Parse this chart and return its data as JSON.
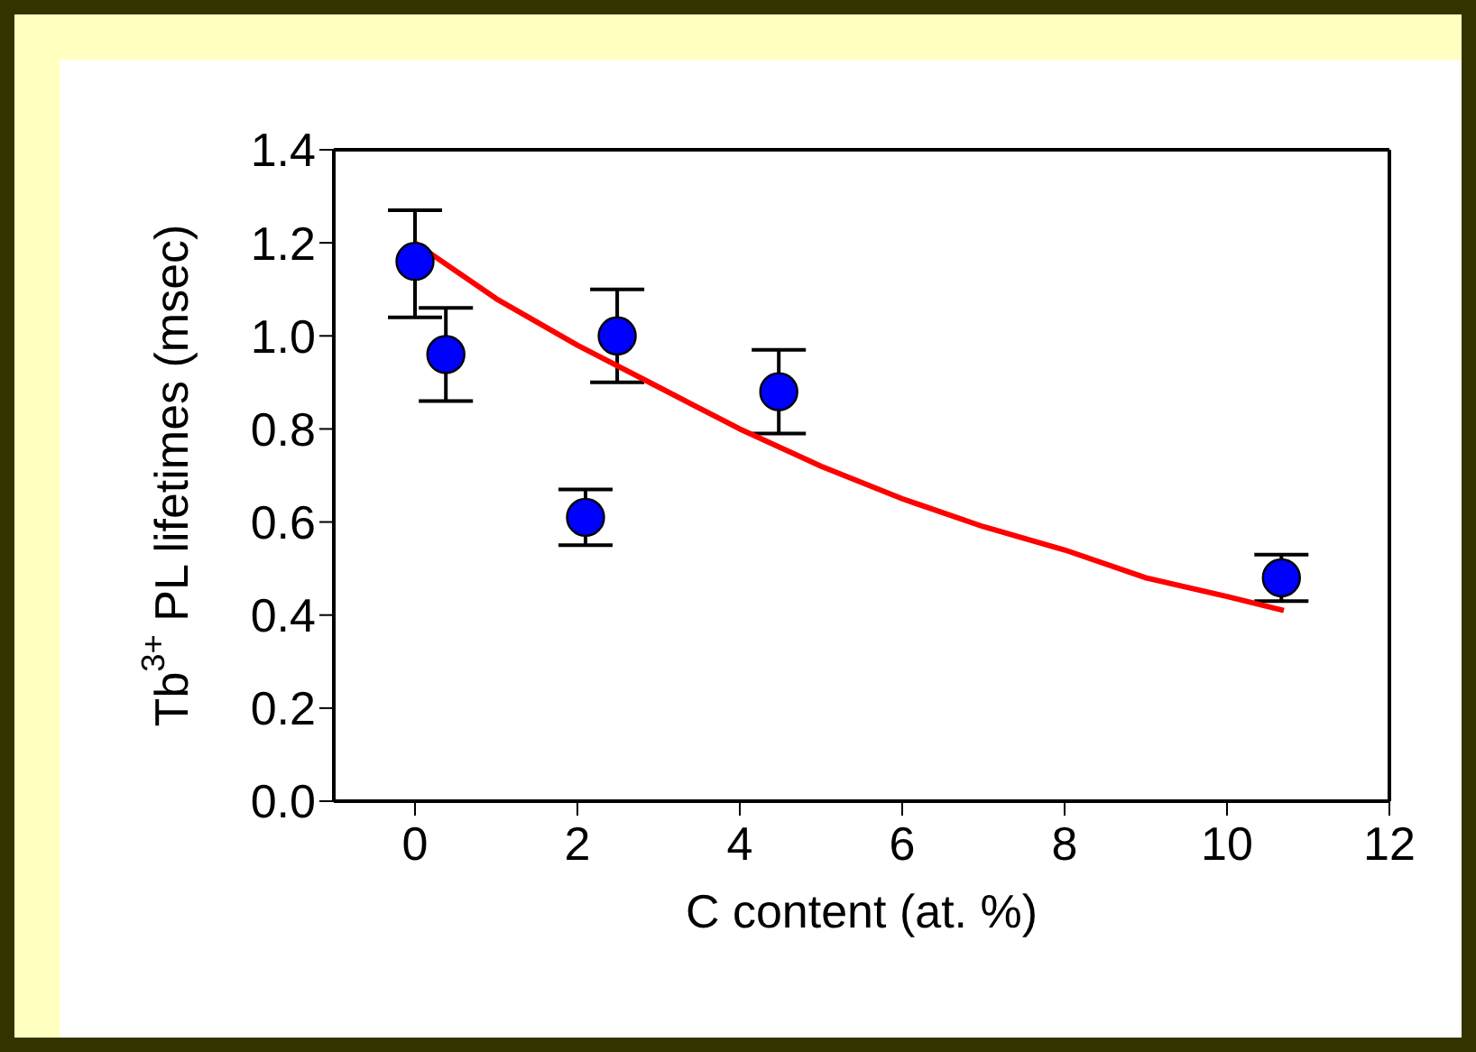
{
  "chart_data": {
    "type": "scatter",
    "xlabel": "C content (at. %)",
    "ylabel": "Tb$^{3+}$ PL lifetimes (msec)",
    "xlim": [
      -1,
      12
    ],
    "xticks": [
      0,
      2,
      4,
      6,
      8,
      10,
      12
    ],
    "ylim": [
      0,
      1.4
    ],
    "yticks": [
      {
        "value": 0,
        "label": "0.0"
      },
      0.2,
      0.4,
      0.6,
      0.8,
      {
        "value": 1,
        "label": "1.0"
      },
      1.2,
      1.4
    ],
    "legend": false,
    "series": [
      {
        "color": "#0000ff",
        "marker": "circle",
        "x": [
          0,
          0.38,
          2.1,
          2.49,
          4.48,
          10.67
        ],
        "values": [
          1.16,
          0.96,
          0.61,
          1.0,
          0.88,
          0.48
        ],
        "errors": [
          [
            1.04,
            1.27
          ],
          [
            0.86,
            1.06
          ],
          [
            0.55,
            0.67
          ],
          [
            0.9,
            1.1
          ],
          [
            0.79,
            0.97
          ],
          [
            0.43,
            0.53
          ]
        ]
      },
      {
        "type": "line",
        "color": "#ff0000",
        "marker": "none",
        "line_style": "solid",
        "x": [
          0,
          1,
          2,
          3,
          4,
          5,
          6,
          7,
          8,
          9,
          10,
          10.7
        ],
        "values": [
          1.2,
          1.08,
          0.98,
          0.89,
          0.8,
          0.72,
          0.65,
          0.59,
          0.54,
          0.48,
          0.44,
          0.41
        ]
      }
    ]
  }
}
